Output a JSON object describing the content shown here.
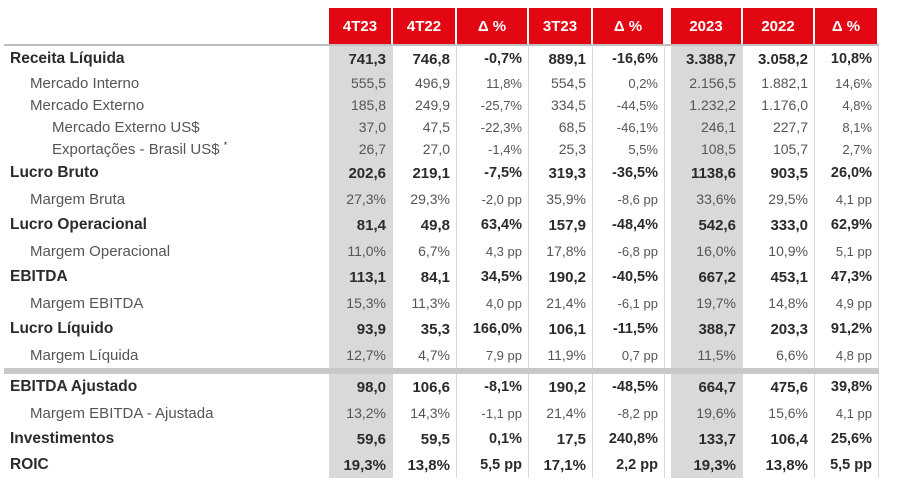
{
  "headers": [
    "4T23",
    "4T22",
    "Δ %",
    "3T23",
    "Δ %",
    "2023",
    "2022",
    "Δ %"
  ],
  "rows": [
    {
      "label": "Receita Líquida",
      "level": 0,
      "values": [
        "741,3",
        "746,8",
        "-0,7%",
        "889,1",
        "-16,6%",
        "3.388,7",
        "3.058,2",
        "10,8%"
      ]
    },
    {
      "label": "Mercado Interno",
      "level": 1,
      "values": [
        "555,5",
        "496,9",
        "11,8%",
        "554,5",
        "0,2%",
        "2.156,5",
        "1.882,1",
        "14,6%"
      ]
    },
    {
      "label": "Mercado Externo",
      "level": 1,
      "values": [
        "185,8",
        "249,9",
        "-25,7%",
        "334,5",
        "-44,5%",
        "1.232,2",
        "1.176,0",
        "4,8%"
      ]
    },
    {
      "label": "Mercado Externo US$",
      "level": 2,
      "values": [
        "37,0",
        "47,5",
        "-22,3%",
        "68,5",
        "-46,1%",
        "246,1",
        "227,7",
        "8,1%"
      ]
    },
    {
      "label": "Exportações - Brasil US$",
      "level": 2,
      "sup": "*",
      "values": [
        "26,7",
        "27,0",
        "-1,4%",
        "25,3",
        "5,5%",
        "108,5",
        "105,7",
        "2,7%"
      ]
    },
    {
      "label": "Lucro Bruto",
      "level": 0,
      "values": [
        "202,6",
        "219,1",
        "-7,5%",
        "319,3",
        "-36,5%",
        "1138,6",
        "903,5",
        "26,0%"
      ]
    },
    {
      "label": "Margem Bruta",
      "level": 1,
      "values": [
        "27,3%",
        "29,3%",
        "-2,0 pp",
        "35,9%",
        "-8,6 pp",
        "33,6%",
        "29,5%",
        "4,1 pp"
      ]
    },
    {
      "label": "Lucro Operacional",
      "level": 0,
      "values": [
        "81,4",
        "49,8",
        "63,4%",
        "157,9",
        "-48,4%",
        "542,6",
        "333,0",
        "62,9%"
      ]
    },
    {
      "label": "Margem Operacional",
      "level": 1,
      "values": [
        "11,0%",
        "6,7%",
        "4,3 pp",
        "17,8%",
        "-6,8 pp",
        "16,0%",
        "10,9%",
        "5,1 pp"
      ]
    },
    {
      "label": "EBITDA",
      "level": 0,
      "values": [
        "113,1",
        "84,1",
        "34,5%",
        "190,2",
        "-40,5%",
        "667,2",
        "453,1",
        "47,3%"
      ]
    },
    {
      "label": "Margem EBITDA",
      "level": 1,
      "values": [
        "15,3%",
        "11,3%",
        "4,0 pp",
        "21,4%",
        "-6,1 pp",
        "19,7%",
        "14,8%",
        "4,9 pp"
      ]
    },
    {
      "label": "Lucro Líquido",
      "level": 0,
      "values": [
        "93,9",
        "35,3",
        "166,0%",
        "106,1",
        "-11,5%",
        "388,7",
        "203,3",
        "91,2%"
      ]
    },
    {
      "label": "Margem Líquida",
      "level": 1,
      "values": [
        "12,7%",
        "4,7%",
        "7,9 pp",
        "11,9%",
        "0,7 pp",
        "11,5%",
        "6,6%",
        "4,8 pp"
      ]
    },
    {
      "separator": true
    },
    {
      "label": "EBITDA Ajustado",
      "level": 0,
      "values": [
        "98,0",
        "106,6",
        "-8,1%",
        "190,2",
        "-48,5%",
        "664,7",
        "475,6",
        "39,8%"
      ]
    },
    {
      "label": "Margem EBITDA - Ajustada",
      "level": 1,
      "values": [
        "13,2%",
        "14,3%",
        "-1,1 pp",
        "21,4%",
        "-8,2 pp",
        "19,6%",
        "15,6%",
        "4,1 pp"
      ]
    },
    {
      "label": "Investimentos",
      "level": 0,
      "values": [
        "59,6",
        "59,5",
        "0,1%",
        "17,5",
        "240,8%",
        "133,7",
        "106,4",
        "25,6%"
      ]
    },
    {
      "label": "ROIC",
      "level": 0,
      "values": [
        "19,3%",
        "13,8%",
        "5,5 pp",
        "17,1%",
        "2,2 pp",
        "19,3%",
        "13,8%",
        "5,5 pp"
      ]
    }
  ],
  "colors": {
    "header_bg": "#e30613",
    "header_text": "#ffffff",
    "shade": "#d9d9d9"
  }
}
